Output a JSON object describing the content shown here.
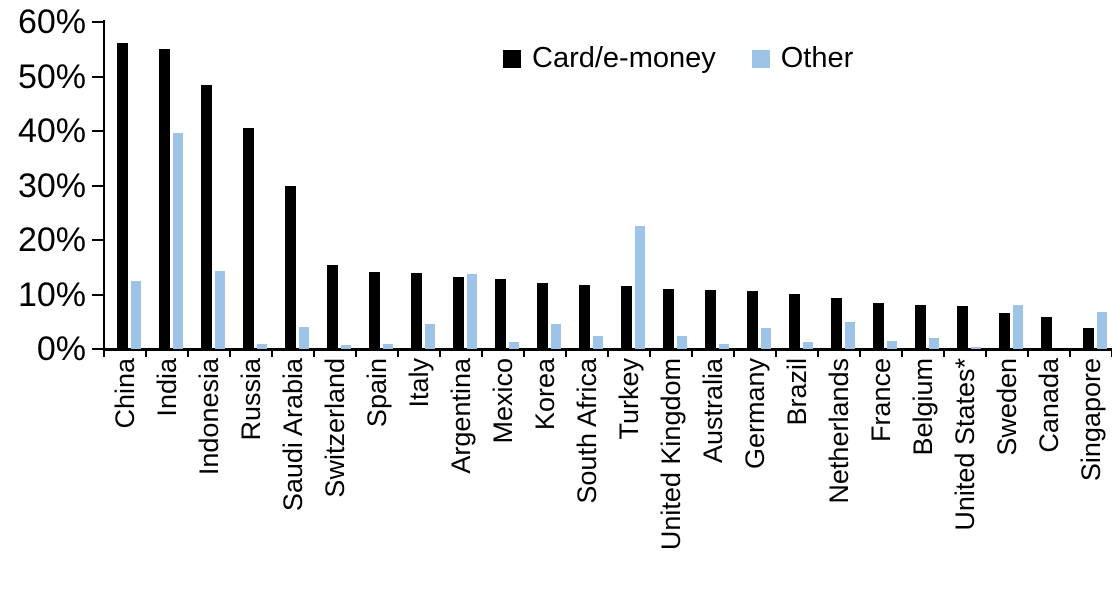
{
  "chart_data": {
    "type": "bar",
    "title": "",
    "xlabel": "",
    "ylabel": "",
    "ylim": [
      0,
      60
    ],
    "yticks": [
      "0%",
      "10%",
      "20%",
      "30%",
      "40%",
      "50%",
      "60%"
    ],
    "grid": false,
    "legend_position": "top-center",
    "categories": [
      "China",
      "India",
      "Indonesia",
      "Russia",
      "Saudi Arabia",
      "Switzerland",
      "Spain",
      "Italy",
      "Argentina",
      "Mexico",
      "Korea",
      "South Africa",
      "Turkey",
      "United Kingdom",
      "Australia",
      "Germany",
      "Brazil",
      "Netherlands",
      "France",
      "Belgium",
      "United States*",
      "Sweden",
      "Canada",
      "Singapore"
    ],
    "series": [
      {
        "name": "Card/e-money",
        "color": "#000000",
        "values": [
          56.2,
          55.0,
          48.4,
          40.5,
          29.9,
          15.5,
          14.1,
          13.9,
          13.3,
          12.8,
          12.2,
          11.7,
          11.6,
          11.0,
          10.8,
          10.6,
          10.0,
          9.3,
          8.5,
          8.1,
          7.9,
          6.6,
          5.9,
          3.9
        ]
      },
      {
        "name": "Other",
        "color": "#9DC3E6",
        "values": [
          12.4,
          39.7,
          14.4,
          1.0,
          4.0,
          0.7,
          1.0,
          4.5,
          13.8,
          1.3,
          4.5,
          2.3,
          22.5,
          2.3,
          0.9,
          3.9,
          1.2,
          4.9,
          1.5,
          2.0,
          0.3,
          8.1,
          0.0,
          6.7
        ]
      }
    ]
  }
}
